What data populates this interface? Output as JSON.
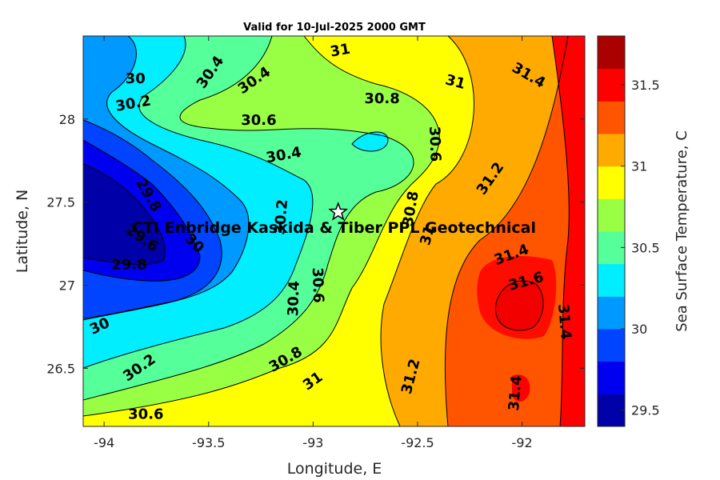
{
  "chart_data": {
    "type": "heatmap",
    "title": "Valid for 10-Jul-2025 2000 GMT",
    "xlabel": "Longitude, E",
    "ylabel": "Latitude, N",
    "colorbar_label": "Sea Surface Temperature, C",
    "xlim": [
      -94.1,
      -91.7
    ],
    "ylim": [
      26.15,
      28.5
    ],
    "x_ticks": [
      -94,
      -93.5,
      -93,
      -92.5,
      -92
    ],
    "x_tick_labels": [
      "-94",
      "-93.5",
      "-93",
      "-92.5",
      "-92"
    ],
    "y_ticks": [
      26.5,
      27,
      27.5,
      28
    ],
    "y_tick_labels": [
      "26.5",
      "27",
      "27.5",
      "28"
    ],
    "colorbar_levels": [
      29.4,
      29.5,
      29.6,
      29.7,
      29.8,
      29.9,
      30.0,
      30.1,
      30.2,
      30.3,
      30.4,
      30.5,
      30.6,
      30.7,
      30.8,
      30.9,
      31.0,
      31.1,
      31.2,
      31.3,
      31.4,
      31.5,
      31.6,
      31.7,
      31.8
    ],
    "colorbar_colors": [
      "#0000a8",
      "#0000f0",
      "#0044ff",
      "#0099ff",
      "#00eeff",
      "#55ff99",
      "#99ff44",
      "#ffff00",
      "#ffaa00",
      "#ff5500",
      "#ff0000",
      "#aa0000"
    ],
    "colorbar_ticks": [
      29.5,
      30,
      30.5,
      31,
      31.5
    ],
    "colorbar_tick_labels": [
      "29.5",
      "30",
      "30.5",
      "31",
      "31.5"
    ],
    "contour_labels": [
      {
        "text": "30.4",
        "lon": -93.49,
        "lat": 28.28,
        "angle": -55
      },
      {
        "text": "30.4",
        "lon": -93.28,
        "lat": 28.23,
        "angle": -35
      },
      {
        "text": "30",
        "lon": -93.85,
        "lat": 28.24,
        "angle": 0
      },
      {
        "text": "30.2",
        "lon": -93.86,
        "lat": 28.09,
        "angle": -10
      },
      {
        "text": "31",
        "lon": -92.87,
        "lat": 28.41,
        "angle": -10
      },
      {
        "text": "31",
        "lon": -92.32,
        "lat": 28.22,
        "angle": 15
      },
      {
        "text": "31.4",
        "lon": -91.97,
        "lat": 28.26,
        "angle": 30
      },
      {
        "text": "30.8",
        "lon": -92.67,
        "lat": 28.12,
        "angle": 0
      },
      {
        "text": "30.6",
        "lon": -93.26,
        "lat": 27.99,
        "angle": 0
      },
      {
        "text": "30.4",
        "lon": -93.14,
        "lat": 27.78,
        "angle": -10
      },
      {
        "text": "30.6",
        "lon": -92.42,
        "lat": 27.85,
        "angle": 88
      },
      {
        "text": "31.2",
        "lon": -92.15,
        "lat": 27.64,
        "angle": -55
      },
      {
        "text": "29.8",
        "lon": -93.79,
        "lat": 27.54,
        "angle": 60
      },
      {
        "text": "30.2",
        "lon": -93.15,
        "lat": 27.41,
        "angle": -85
      },
      {
        "text": "30",
        "lon": -93.57,
        "lat": 27.25,
        "angle": 45
      },
      {
        "text": "29.6",
        "lon": -93.82,
        "lat": 27.28,
        "angle": 35
      },
      {
        "text": "29.8",
        "lon": -93.88,
        "lat": 27.12,
        "angle": 0
      },
      {
        "text": "30.8",
        "lon": -92.53,
        "lat": 27.46,
        "angle": -80
      },
      {
        "text": "31",
        "lon": -92.45,
        "lat": 27.3,
        "angle": -75
      },
      {
        "text": "31.4",
        "lon": -92.05,
        "lat": 27.18,
        "angle": -20
      },
      {
        "text": "31.6",
        "lon": -91.98,
        "lat": 27.02,
        "angle": -15
      },
      {
        "text": "30.6",
        "lon": -92.98,
        "lat": 27.0,
        "angle": 88
      },
      {
        "text": "30.4",
        "lon": -93.09,
        "lat": 26.92,
        "angle": -88
      },
      {
        "text": "31.4",
        "lon": -91.8,
        "lat": 26.78,
        "angle": 85
      },
      {
        "text": "30",
        "lon": -94.02,
        "lat": 26.75,
        "angle": -25
      },
      {
        "text": "30.2",
        "lon": -93.83,
        "lat": 26.5,
        "angle": -35
      },
      {
        "text": "30.8",
        "lon": -93.13,
        "lat": 26.55,
        "angle": -30
      },
      {
        "text": "31",
        "lon": -93.0,
        "lat": 26.42,
        "angle": -35
      },
      {
        "text": "31.2",
        "lon": -92.53,
        "lat": 26.45,
        "angle": -75
      },
      {
        "text": "31.4",
        "lon": -92.03,
        "lat": 26.35,
        "angle": -85
      },
      {
        "text": "30.6",
        "lon": -93.8,
        "lat": 26.22,
        "angle": 0
      }
    ],
    "annotation": {
      "text": "CTI Enbridge  Kaskida & Tiber PPL Geotechnical",
      "lon": -92.9,
      "lat": 27.35
    },
    "star_marker": {
      "lon": -92.88,
      "lat": 27.44
    }
  }
}
